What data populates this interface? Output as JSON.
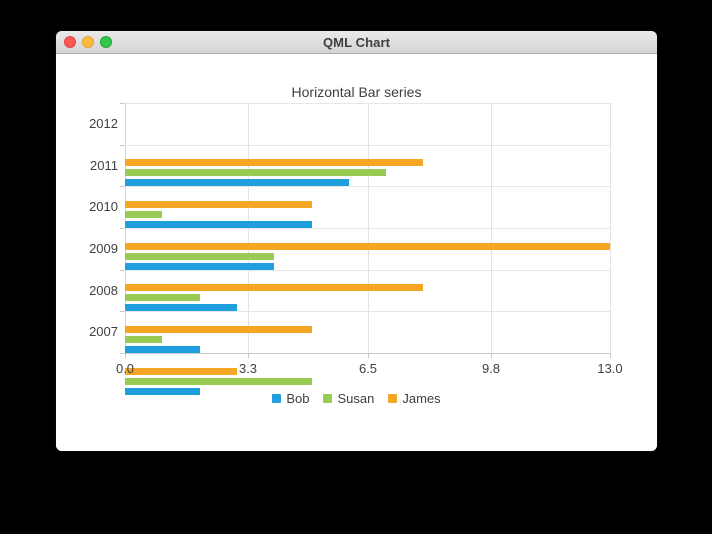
{
  "window": {
    "title": "QML Chart"
  },
  "chart_data": {
    "type": "bar",
    "orientation": "horizontal",
    "title": "Horizontal Bar series",
    "categories": [
      "2007",
      "2008",
      "2009",
      "2010",
      "2011",
      "2012"
    ],
    "categories_display_order": "top_is_last",
    "series": [
      {
        "name": "Bob",
        "color": "#209fdf",
        "values": [
          2,
          2,
          3,
          4,
          5,
          6
        ]
      },
      {
        "name": "Susan",
        "color": "#99ca53",
        "values": [
          5,
          1,
          2,
          4,
          1,
          7
        ]
      },
      {
        "name": "James",
        "color": "#f6a625",
        "values": [
          3,
          5,
          8,
          13,
          5,
          8
        ]
      }
    ],
    "x_axis": {
      "min": 0,
      "max": 13,
      "tick_values": [
        0,
        3.3,
        6.5,
        9.8,
        13
      ],
      "tick_labels": [
        "0.0",
        "3.3",
        "6.5",
        "9.8",
        "13.0"
      ]
    },
    "grid": true,
    "legend_position": "bottom"
  },
  "colors": {
    "bar_blue": "#209fdf",
    "bar_green": "#99ca53",
    "bar_orange": "#f6a625",
    "text": "#404044",
    "traffic_red": "#fc5753",
    "traffic_yellow": "#fdbc40",
    "traffic_green": "#33c748"
  }
}
